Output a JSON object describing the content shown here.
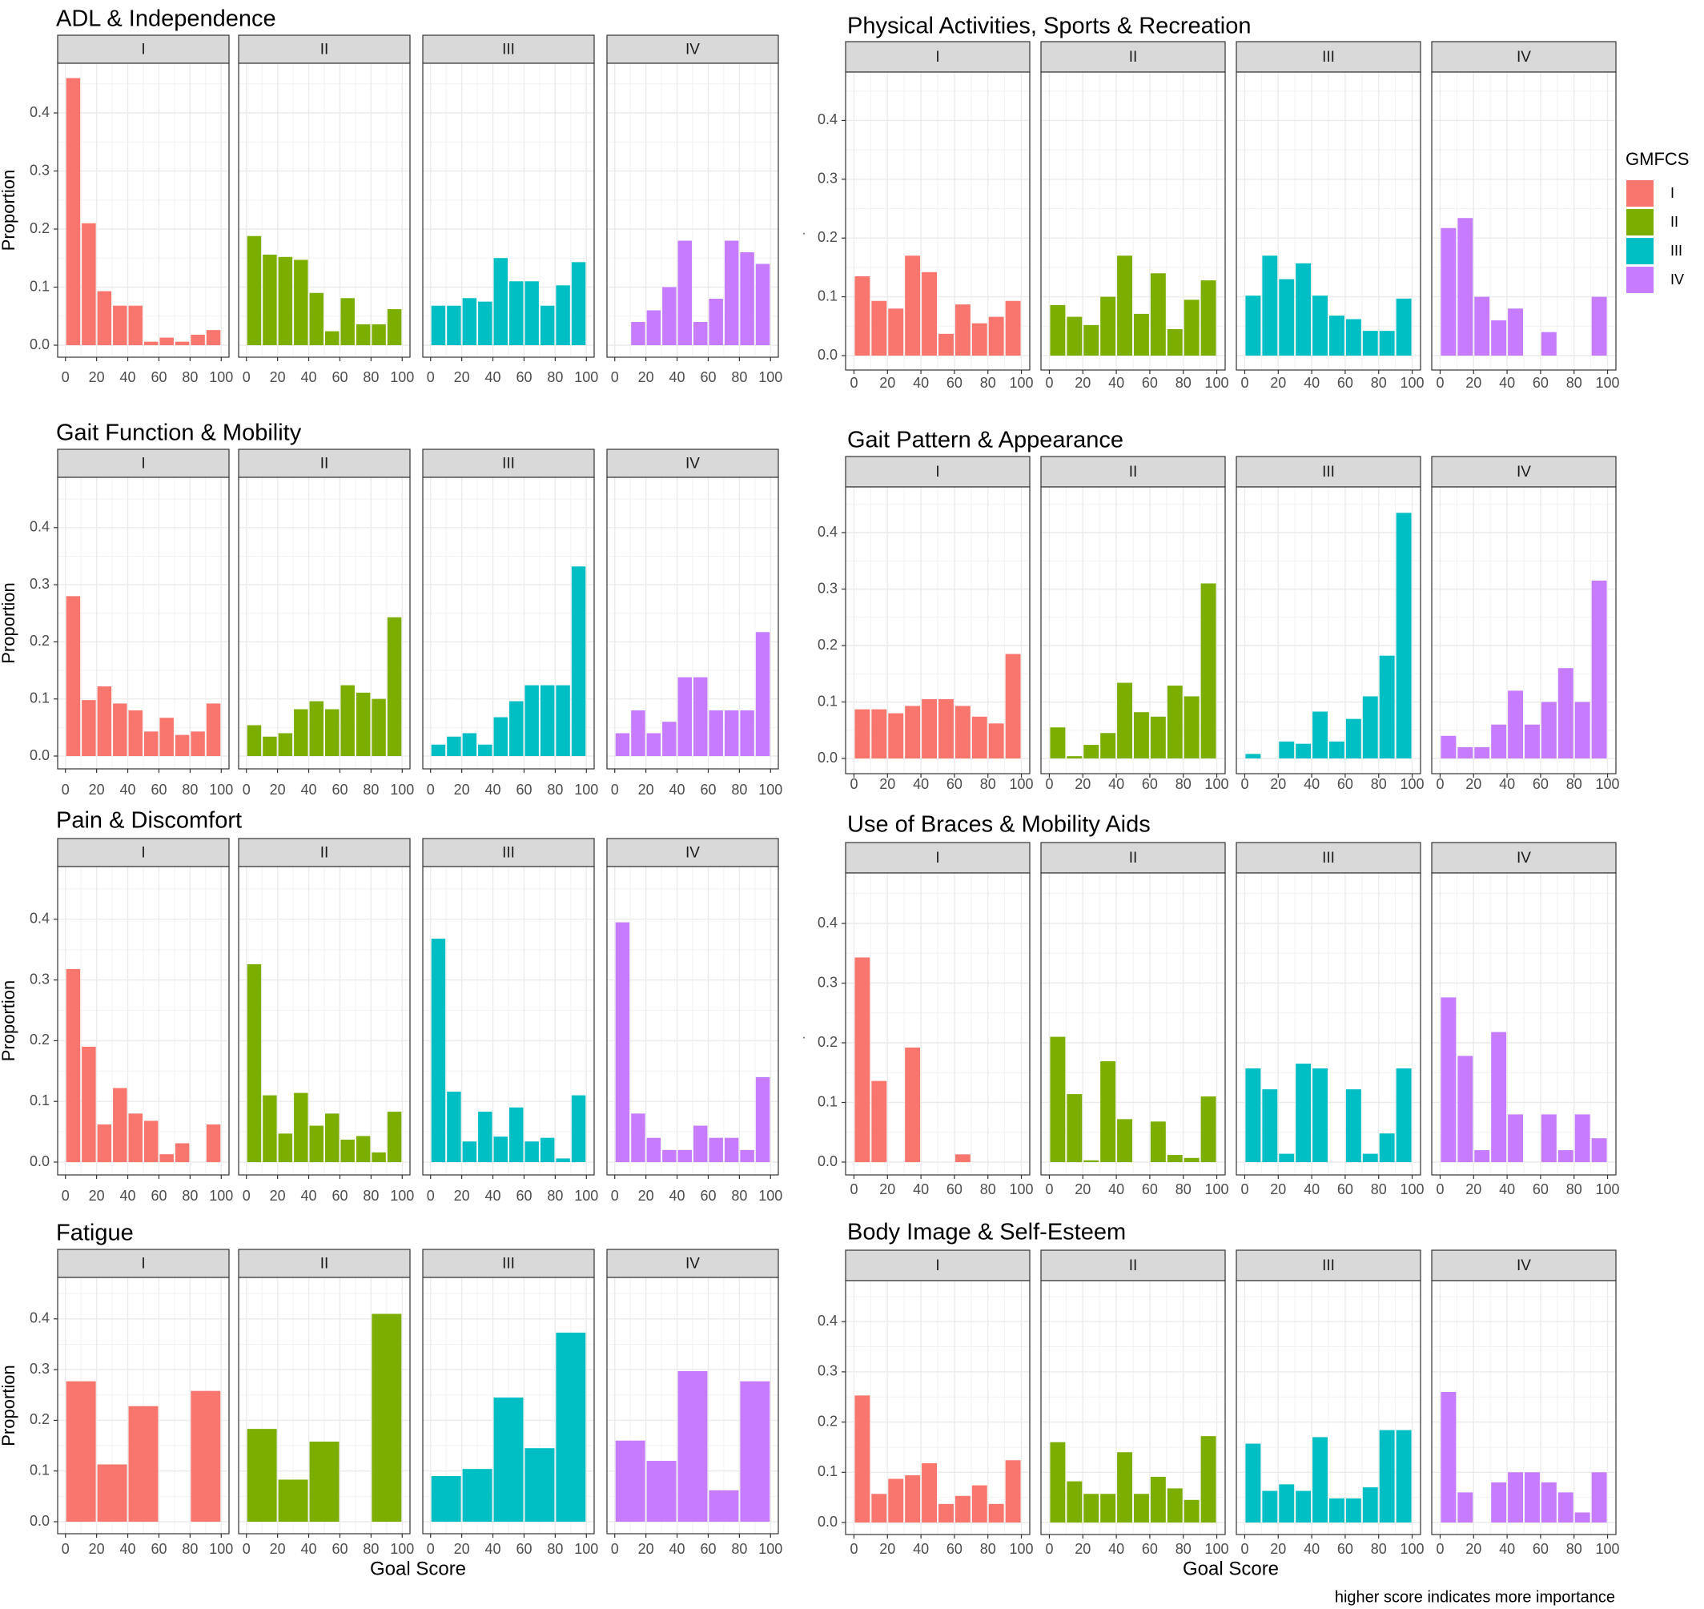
{
  "figure": {
    "facets": [
      "I",
      "II",
      "III",
      "IV"
    ],
    "y_label": "Proportion",
    "x_label": "Goal Score",
    "footnote": "higher score indicates more importance",
    "stray_mark": "·",
    "legend": {
      "title": "GMFCS",
      "entries": [
        {
          "label": "I",
          "color": "#F8766D"
        },
        {
          "label": "II",
          "color": "#7CAE00"
        },
        {
          "label": "III",
          "color": "#00BFC4"
        },
        {
          "label": "IV",
          "color": "#C77CFF"
        }
      ]
    },
    "x_ticks": [
      "0",
      "20",
      "40",
      "60",
      "80",
      "100"
    ],
    "y_ticks": [
      "0.0",
      "0.1",
      "0.2",
      "0.3",
      "0.4"
    ]
  },
  "chart_data": [
    {
      "type": "bar",
      "title": "ADL & Independence",
      "xlabel": "",
      "ylabel": "Proportion",
      "xlim": [
        -5,
        105
      ],
      "ylim": [
        0,
        0.48
      ],
      "bin_width": 10,
      "x": [
        5,
        15,
        25,
        35,
        45,
        55,
        65,
        75,
        85,
        95
      ],
      "series": [
        {
          "name": "I",
          "values": [
            0.46,
            0.21,
            0.093,
            0.068,
            0.068,
            0.006,
            0.013,
            0.006,
            0.018,
            0.026
          ]
        },
        {
          "name": "II",
          "values": [
            0.188,
            0.156,
            0.152,
            0.147,
            0.09,
            0.024,
            0.081,
            0.036,
            0.036,
            0.062
          ]
        },
        {
          "name": "III",
          "values": [
            0.068,
            0.068,
            0.081,
            0.075,
            0.15,
            0.11,
            0.11,
            0.068,
            0.103,
            0.143
          ]
        },
        {
          "name": "IV",
          "values": [
            0,
            0.04,
            0.06,
            0.1,
            0.18,
            0.04,
            0.08,
            0.18,
            0.16,
            0.14
          ]
        }
      ]
    },
    {
      "type": "bar",
      "title": "Physical Activities, Sports & Recreation",
      "xlabel": "",
      "ylabel": "",
      "xlim": [
        -5,
        105
      ],
      "ylim": [
        0,
        0.48
      ],
      "bin_width": 10,
      "x": [
        5,
        15,
        25,
        35,
        45,
        55,
        65,
        75,
        85,
        95
      ],
      "series": [
        {
          "name": "I",
          "values": [
            0.135,
            0.093,
            0.08,
            0.17,
            0.142,
            0.037,
            0.087,
            0.055,
            0.066,
            0.093
          ]
        },
        {
          "name": "II",
          "values": [
            0.086,
            0.066,
            0.052,
            0.1,
            0.17,
            0.071,
            0.14,
            0.045,
            0.095,
            0.128
          ]
        },
        {
          "name": "III",
          "values": [
            0.102,
            0.17,
            0.13,
            0.157,
            0.102,
            0.068,
            0.062,
            0.042,
            0.042,
            0.097
          ]
        },
        {
          "name": "IV",
          "values": [
            0.217,
            0.234,
            0.1,
            0.06,
            0.08,
            0,
            0.04,
            0,
            0,
            0.1
          ]
        }
      ]
    },
    {
      "type": "bar",
      "title": "Gait Function & Mobility",
      "xlabel": "",
      "ylabel": "Proportion",
      "xlim": [
        -5,
        105
      ],
      "ylim": [
        0,
        0.48
      ],
      "bin_width": 10,
      "x": [
        5,
        15,
        25,
        35,
        45,
        55,
        65,
        75,
        85,
        95
      ],
      "series": [
        {
          "name": "I",
          "values": [
            0.28,
            0.098,
            0.122,
            0.092,
            0.08,
            0.043,
            0.067,
            0.037,
            0.043,
            0.092
          ]
        },
        {
          "name": "II",
          "values": [
            0.054,
            0.034,
            0.04,
            0.082,
            0.096,
            0.082,
            0.124,
            0.111,
            0.1,
            0.243
          ]
        },
        {
          "name": "III",
          "values": [
            0.02,
            0.034,
            0.04,
            0.02,
            0.068,
            0.096,
            0.124,
            0.124,
            0.124,
            0.332
          ]
        },
        {
          "name": "IV",
          "values": [
            0.04,
            0.08,
            0.04,
            0.06,
            0.138,
            0.138,
            0.08,
            0.08,
            0.08,
            0.217
          ]
        }
      ]
    },
    {
      "type": "bar",
      "title": "Gait Pattern & Appearance",
      "xlabel": "",
      "ylabel": "",
      "xlim": [
        -5,
        105
      ],
      "ylim": [
        0,
        0.48
      ],
      "bin_width": 10,
      "x": [
        5,
        15,
        25,
        35,
        45,
        55,
        65,
        75,
        85,
        95
      ],
      "series": [
        {
          "name": "I",
          "values": [
            0.087,
            0.087,
            0.08,
            0.093,
            0.105,
            0.105,
            0.093,
            0.074,
            0.062,
            0.185
          ]
        },
        {
          "name": "II",
          "values": [
            0.055,
            0.004,
            0.024,
            0.045,
            0.134,
            0.082,
            0.074,
            0.129,
            0.11,
            0.31
          ]
        },
        {
          "name": "III",
          "values": [
            0.008,
            0,
            0.03,
            0.026,
            0.083,
            0.03,
            0.07,
            0.11,
            0.182,
            0.435
          ]
        },
        {
          "name": "IV",
          "values": [
            0.04,
            0.02,
            0.02,
            0.06,
            0.12,
            0.06,
            0.1,
            0.16,
            0.1,
            0.315
          ]
        }
      ]
    },
    {
      "type": "bar",
      "title": "Pain & Discomfort",
      "xlabel": "",
      "ylabel": "Proportion",
      "xlim": [
        -5,
        105
      ],
      "ylim": [
        0,
        0.48
      ],
      "bin_width": 10,
      "x": [
        5,
        15,
        25,
        35,
        45,
        55,
        65,
        75,
        85,
        95
      ],
      "series": [
        {
          "name": "I",
          "values": [
            0.318,
            0.19,
            0.062,
            0.122,
            0.08,
            0.068,
            0.013,
            0.031,
            0,
            0.062
          ]
        },
        {
          "name": "II",
          "values": [
            0.326,
            0.11,
            0.047,
            0.114,
            0.06,
            0.08,
            0.037,
            0.043,
            0.016,
            0.083
          ]
        },
        {
          "name": "III",
          "values": [
            0.368,
            0.116,
            0.034,
            0.083,
            0.042,
            0.09,
            0.034,
            0.04,
            0.006,
            0.11
          ]
        },
        {
          "name": "IV",
          "values": [
            0.395,
            0.08,
            0.04,
            0.02,
            0.02,
            0.06,
            0.04,
            0.04,
            0.02,
            0.14
          ]
        }
      ]
    },
    {
      "type": "bar",
      "title": "Use of Braces & Mobility Aids",
      "xlabel": "",
      "ylabel": "",
      "xlim": [
        -5,
        105
      ],
      "ylim": [
        0,
        0.48
      ],
      "bin_width": 10,
      "x": [
        5,
        15,
        25,
        35,
        45,
        55,
        65,
        75,
        85,
        95
      ],
      "series": [
        {
          "name": "I",
          "values": [
            0.343,
            0.136,
            0,
            0.192,
            0,
            0,
            0.013,
            0,
            0,
            0
          ]
        },
        {
          "name": "II",
          "values": [
            0.21,
            0.114,
            0.003,
            0.169,
            0.072,
            0,
            0.068,
            0.012,
            0.007,
            0.11
          ]
        },
        {
          "name": "III",
          "values": [
            0.157,
            0.122,
            0.014,
            0.165,
            0.157,
            0,
            0.122,
            0.014,
            0.048,
            0.157
          ]
        },
        {
          "name": "IV",
          "values": [
            0.276,
            0.178,
            0.02,
            0.218,
            0.08,
            0,
            0.08,
            0.02,
            0.08,
            0.04
          ]
        }
      ]
    },
    {
      "type": "bar",
      "title": "Fatigue",
      "xlabel": "Goal Score",
      "ylabel": "Proportion",
      "xlim": [
        -5,
        105
      ],
      "ylim": [
        0,
        0.48
      ],
      "bin_width": 20,
      "x": [
        10,
        30,
        50,
        70,
        90
      ],
      "series": [
        {
          "name": "I",
          "values": [
            0.277,
            0.113,
            0.228,
            0,
            0.258
          ]
        },
        {
          "name": "II",
          "values": [
            0.183,
            0.083,
            0.158,
            0,
            0.41
          ]
        },
        {
          "name": "III",
          "values": [
            0.09,
            0.104,
            0.245,
            0.145,
            0.373
          ]
        },
        {
          "name": "IV",
          "values": [
            0.16,
            0.12,
            0.297,
            0.062,
            0.277
          ]
        }
      ]
    },
    {
      "type": "bar",
      "title": "Body Image & Self-Esteem",
      "xlabel": "Goal Score",
      "ylabel": "",
      "xlim": [
        -5,
        105
      ],
      "ylim": [
        0,
        0.48
      ],
      "bin_width": 10,
      "x": [
        5,
        15,
        25,
        35,
        45,
        55,
        65,
        75,
        85,
        95
      ],
      "series": [
        {
          "name": "I",
          "values": [
            0.253,
            0.057,
            0.087,
            0.094,
            0.118,
            0.037,
            0.053,
            0.074,
            0.037,
            0.124
          ]
        },
        {
          "name": "II",
          "values": [
            0.16,
            0.082,
            0.057,
            0.057,
            0.14,
            0.057,
            0.091,
            0.068,
            0.045,
            0.172
          ]
        },
        {
          "name": "III",
          "values": [
            0.157,
            0.063,
            0.076,
            0.063,
            0.17,
            0.048,
            0.048,
            0.07,
            0.184,
            0.184
          ]
        },
        {
          "name": "IV",
          "values": [
            0.26,
            0.06,
            0,
            0.08,
            0.1,
            0.1,
            0.08,
            0.06,
            0.02,
            0.1
          ]
        }
      ]
    }
  ]
}
